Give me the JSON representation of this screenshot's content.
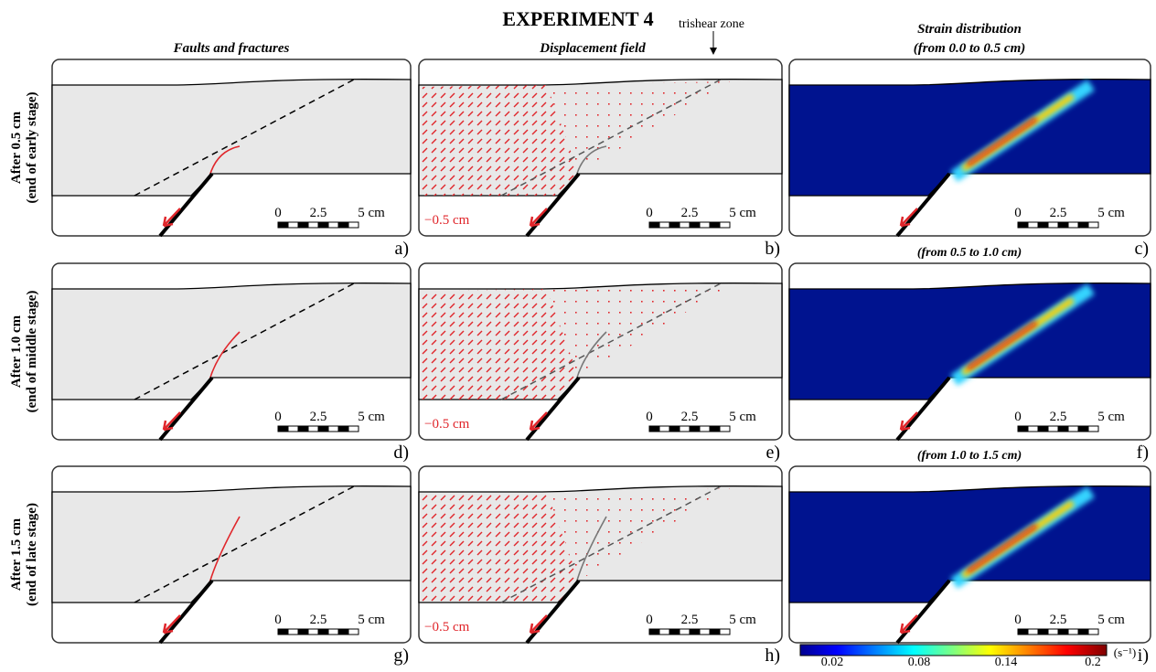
{
  "title": "EXPERIMENT 4",
  "columns": [
    {
      "title": "Faults and fractures"
    },
    {
      "title": "Displacement field",
      "annotation": "trishear zone"
    },
    {
      "title": "Strain distribution",
      "subtitle": "(from 0.0 to 0.5 cm)"
    }
  ],
  "rows": [
    {
      "label": "After 0.5 cm",
      "sublabel": "(end of early stage)",
      "panels": [
        "a)",
        "b)",
        "c)"
      ]
    },
    {
      "label": "After 1.0 cm",
      "sublabel": "(end of middle stage)",
      "panels": [
        "d)",
        "e)",
        "f)"
      ],
      "strain_title": "(from 0.5 to 1.0 cm)"
    },
    {
      "label": "After 1.5 cm",
      "sublabel": "(end of late stage)",
      "panels": [
        "g)",
        "h)",
        "i)"
      ],
      "strain_title": "(from 1.0 to 1.5 cm)"
    }
  ],
  "scale_bar": [
    "0",
    "2.5",
    "5 cm"
  ],
  "displacement_scale": "−0.5 cm",
  "colorbar": {
    "labels": [
      "0.02",
      "0.08",
      "0.14",
      "0.2"
    ],
    "unit": "(s⁻¹)"
  }
}
